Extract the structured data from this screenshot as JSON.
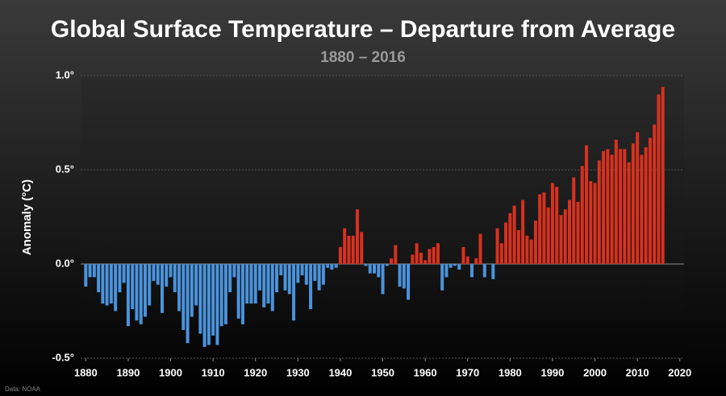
{
  "chart_data": {
    "type": "bar",
    "title": "Global Surface Temperature – Departure from Average",
    "subtitle": "1880 – 2016",
    "y_label": "Anomaly (°C)",
    "source": "Data: NOAA",
    "colors": {
      "positive": "#d8311f",
      "negative": "#4b93dc"
    },
    "x": [
      1880,
      1881,
      1882,
      1883,
      1884,
      1885,
      1886,
      1887,
      1888,
      1889,
      1890,
      1891,
      1892,
      1893,
      1894,
      1895,
      1896,
      1897,
      1898,
      1899,
      1900,
      1901,
      1902,
      1903,
      1904,
      1905,
      1906,
      1907,
      1908,
      1909,
      1910,
      1911,
      1912,
      1913,
      1914,
      1915,
      1916,
      1917,
      1918,
      1919,
      1920,
      1921,
      1922,
      1923,
      1924,
      1925,
      1926,
      1927,
      1928,
      1929,
      1930,
      1931,
      1932,
      1933,
      1934,
      1935,
      1936,
      1937,
      1938,
      1939,
      1940,
      1941,
      1942,
      1943,
      1944,
      1945,
      1946,
      1947,
      1948,
      1949,
      1950,
      1951,
      1952,
      1953,
      1954,
      1955,
      1956,
      1957,
      1958,
      1959,
      1960,
      1961,
      1962,
      1963,
      1964,
      1965,
      1966,
      1967,
      1968,
      1969,
      1970,
      1971,
      1972,
      1973,
      1974,
      1975,
      1976,
      1977,
      1978,
      1979,
      1980,
      1981,
      1982,
      1983,
      1984,
      1985,
      1986,
      1987,
      1988,
      1989,
      1990,
      1991,
      1992,
      1993,
      1994,
      1995,
      1996,
      1997,
      1998,
      1999,
      2000,
      2001,
      2002,
      2003,
      2004,
      2005,
      2006,
      2007,
      2008,
      2009,
      2010,
      2011,
      2012,
      2013,
      2014,
      2015,
      2016
    ],
    "values": [
      -0.12,
      -0.07,
      -0.07,
      -0.15,
      -0.21,
      -0.22,
      -0.21,
      -0.25,
      -0.15,
      -0.1,
      -0.33,
      -0.24,
      -0.3,
      -0.32,
      -0.28,
      -0.22,
      -0.09,
      -0.11,
      -0.26,
      -0.12,
      -0.07,
      -0.15,
      -0.25,
      -0.35,
      -0.42,
      -0.28,
      -0.22,
      -0.37,
      -0.44,
      -0.43,
      -0.38,
      -0.43,
      -0.33,
      -0.32,
      -0.15,
      -0.07,
      -0.29,
      -0.32,
      -0.21,
      -0.21,
      -0.21,
      -0.14,
      -0.23,
      -0.21,
      -0.25,
      -0.15,
      -0.06,
      -0.14,
      -0.16,
      -0.3,
      -0.1,
      -0.06,
      -0.11,
      -0.24,
      -0.09,
      -0.14,
      -0.11,
      -0.02,
      -0.03,
      -0.02,
      0.09,
      0.19,
      0.15,
      0.15,
      0.29,
      0.17,
      -0.01,
      -0.05,
      -0.05,
      -0.07,
      -0.16,
      -0.01,
      0.03,
      0.1,
      -0.12,
      -0.13,
      -0.19,
      0.05,
      0.11,
      0.06,
      0.02,
      0.08,
      0.09,
      0.11,
      -0.14,
      -0.07,
      -0.02,
      -0.01,
      -0.03,
      0.09,
      0.04,
      -0.07,
      0.03,
      0.16,
      -0.07,
      0.0,
      -0.08,
      0.19,
      0.11,
      0.22,
      0.27,
      0.31,
      0.18,
      0.34,
      0.15,
      0.13,
      0.23,
      0.37,
      0.38,
      0.3,
      0.43,
      0.41,
      0.26,
      0.29,
      0.34,
      0.46,
      0.33,
      0.52,
      0.63,
      0.44,
      0.43,
      0.55,
      0.6,
      0.61,
      0.58,
      0.66,
      0.61,
      0.61,
      0.54,
      0.64,
      0.7,
      0.58,
      0.62,
      0.67,
      0.74,
      0.9,
      0.94
    ],
    "xlim": [
      1878.8,
      2021
    ],
    "xticks": [
      1880,
      1890,
      1900,
      1910,
      1920,
      1930,
      1940,
      1950,
      1960,
      1970,
      1980,
      1990,
      2000,
      2010,
      2020
    ],
    "ylim": [
      -0.5,
      1.0
    ],
    "yticks": [
      {
        "value": -0.5,
        "label": "-0.5°"
      },
      {
        "value": 0,
        "label": "0.0°"
      },
      {
        "value": 0.5,
        "label": "0.5°"
      },
      {
        "value": 1,
        "label": "1.0°"
      }
    ],
    "grid": true
  }
}
